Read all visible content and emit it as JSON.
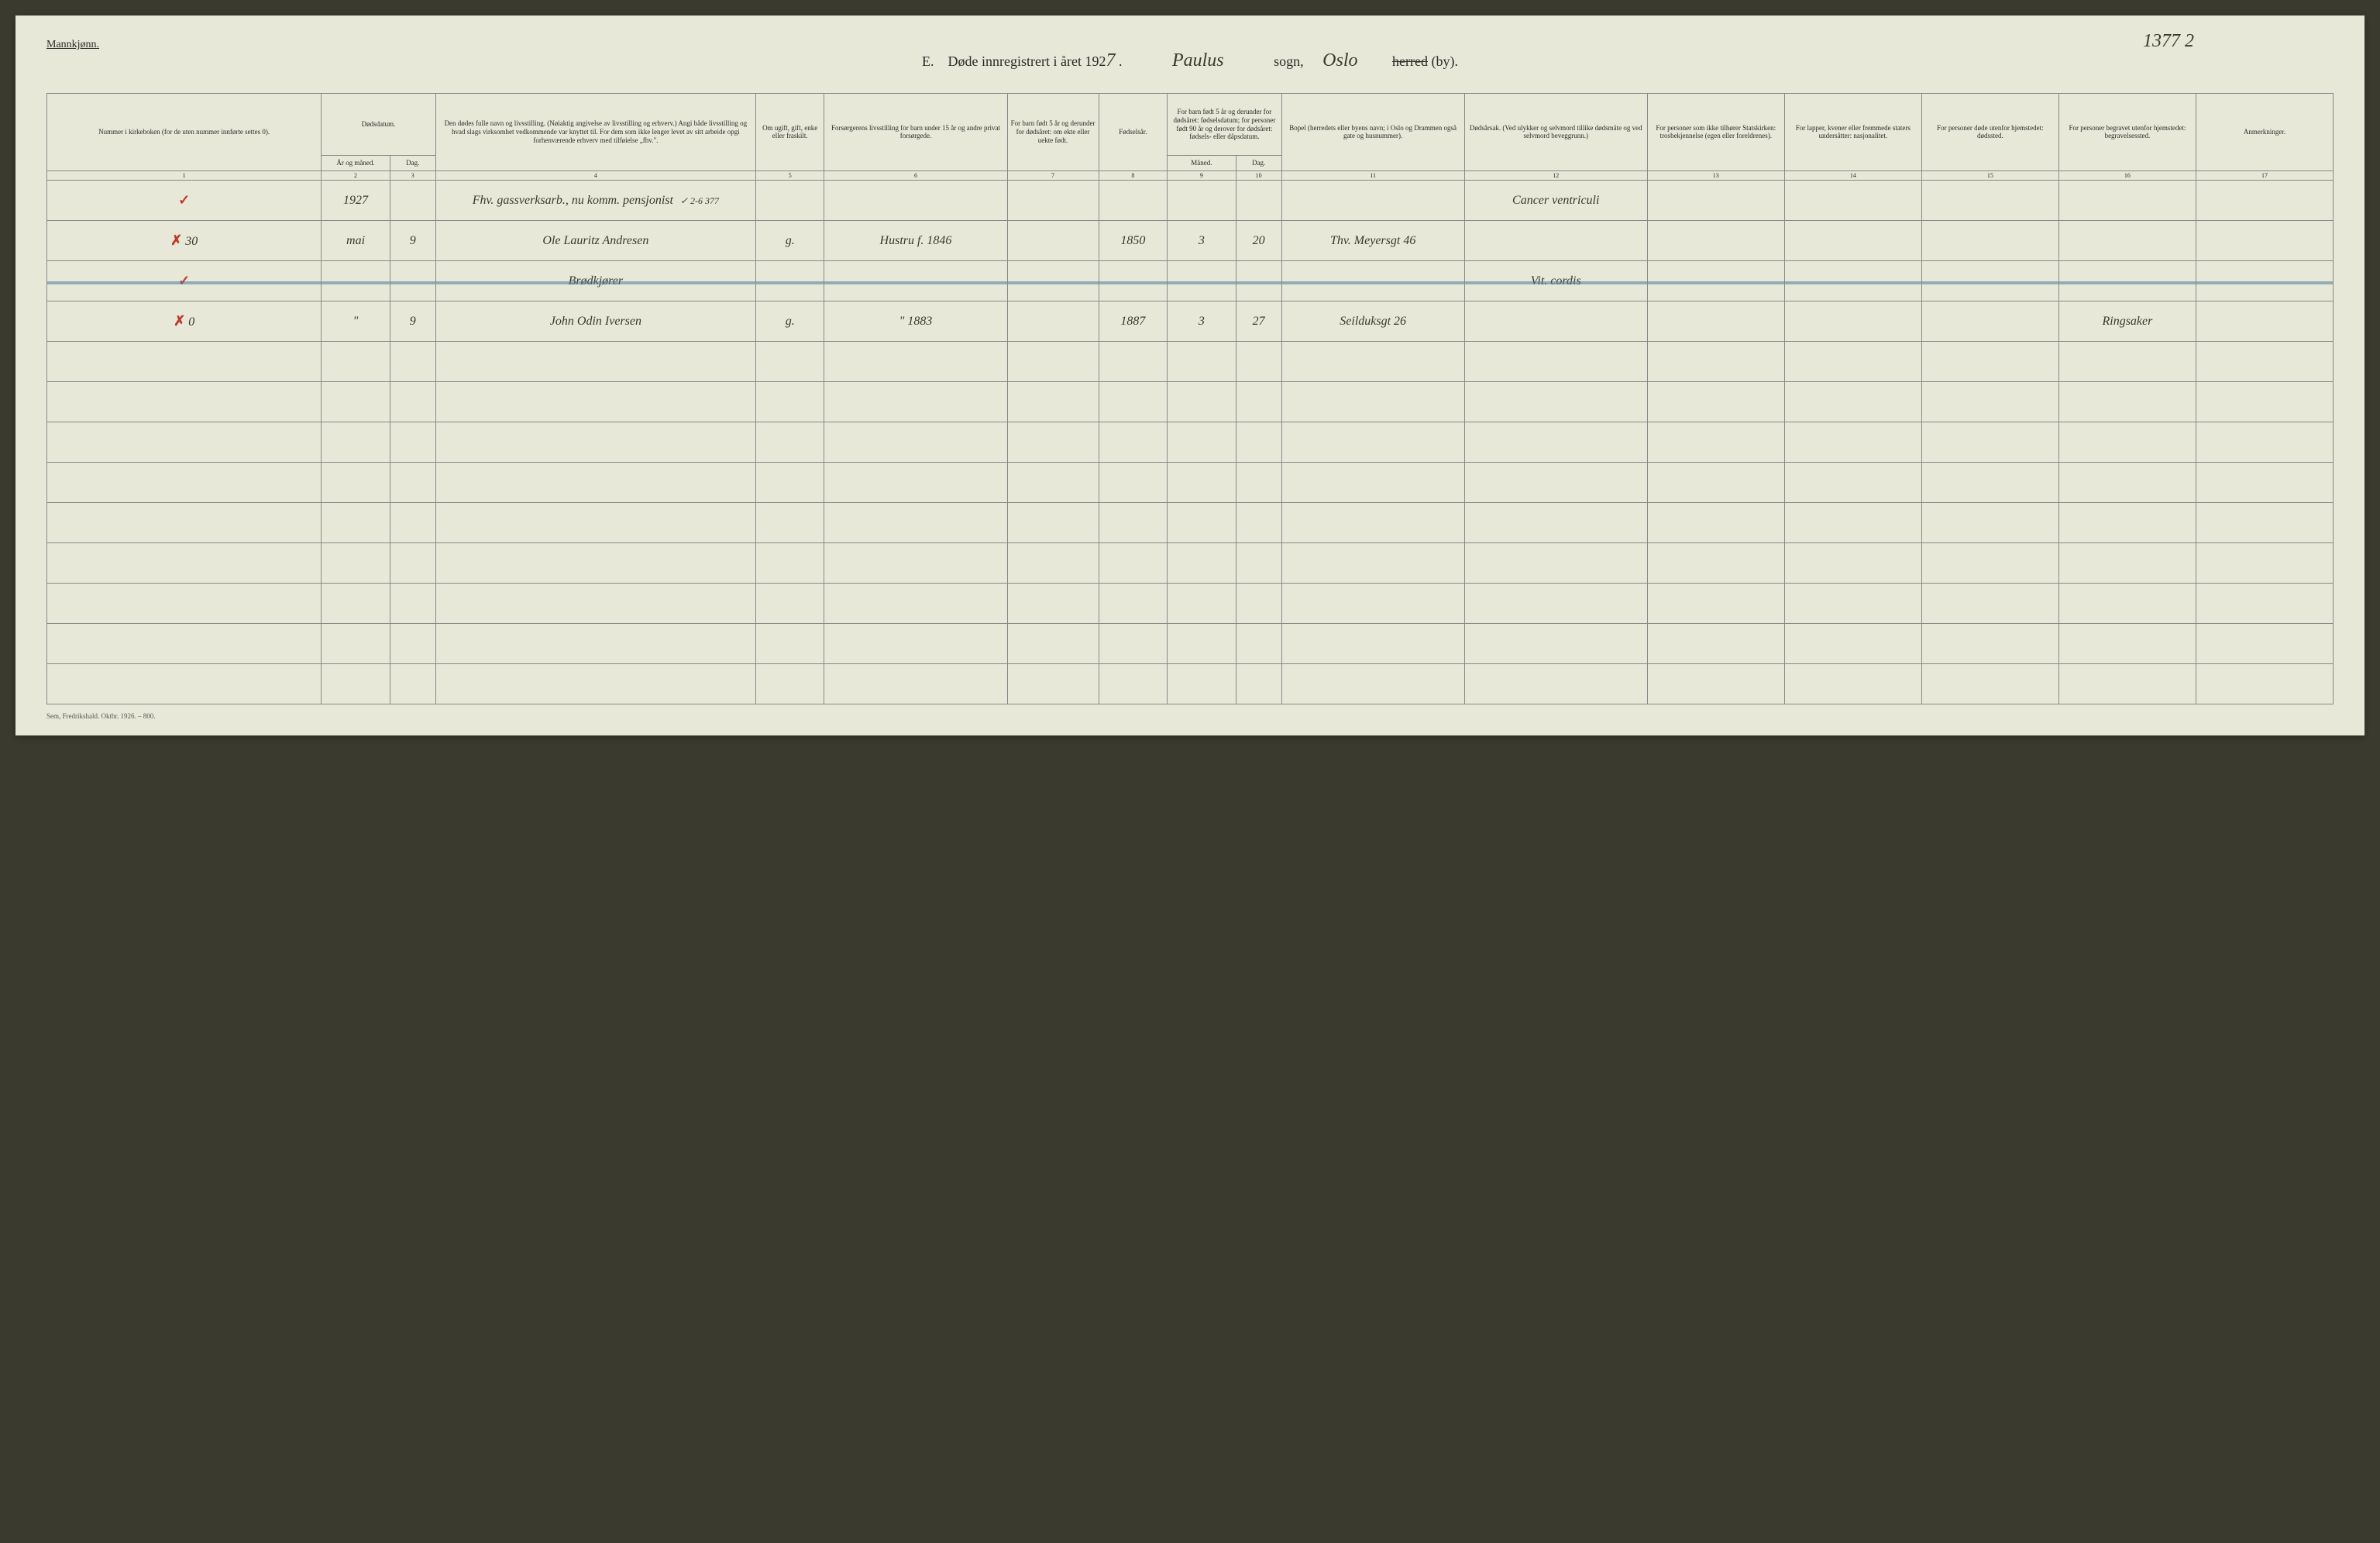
{
  "header": {
    "gender_label": "Mannkjønn.",
    "page_number_handwritten": "1377 2",
    "title_prefix": "E.",
    "title_main": "Døde innregistrert i året 192",
    "year_suffix": "7",
    "parish_handwritten": "Paulus",
    "sogn_label": "sogn,",
    "city_handwritten": "Oslo",
    "herred_struck": "herred",
    "by_label": "(by)."
  },
  "columns": {
    "c1": "Nummer i kirkeboken (for de uten nummer innførte settes 0).",
    "c2": "Dødsdatum.",
    "c2a": "År og måned.",
    "c2b": "Dag.",
    "c3": "Den dødes fulle navn og livsstilling. (Nøiaktig angivelse av livsstilling og erhverv.) Angi både livsstilling og hvad slags virksomhet vedkommende var knyttet til. For dem som ikke lenger levet av sitt arbeide opgi forhenværende erhverv med tilføielse „fhv.\".",
    "c4": "Om ugift, gift, enke eller fraskilt.",
    "c5": "Forsørgerens livsstilling for barn under 15 år og andre privat forsørgede.",
    "c6": "For barn født 5 år og derunder for dødsåret: om ekte eller uekte født.",
    "c7": "Fødselsår.",
    "c8": "For barn født 5 år og derunder for dødsåret: fødselsdatum; for personer født 90 år og derover for dødsåret: fødsels- eller dåpsdatum.",
    "c8a": "Måned.",
    "c8b": "Dag.",
    "c9": "Bopel (herredets eller byens navn; i Oslo og Drammen også gate og husnummer).",
    "c10": "Dødsårsak. (Ved ulykker og selvmord tillike dødsmåte og ved selvmord beveggrunn.)",
    "c11": "For personer som ikke tilhører Statskirken: trosbekjennelse (egen eller foreldrenes).",
    "c12": "For lapper, kvener eller fremmede staters undersåtter: nasjonalitet.",
    "c13": "For personer døde utenfor hjemstedet: dødssted.",
    "c14": "For personer begravet utenfor hjemstedet: begravelsessted.",
    "c15": "Anmerkninger."
  },
  "column_numbers": [
    "1",
    "2",
    "3",
    "4",
    "5",
    "6",
    "7",
    "8",
    "9",
    "10",
    "11",
    "12",
    "13",
    "14",
    "15",
    "16",
    "17"
  ],
  "rows": [
    {
      "mark": "✓",
      "num": "",
      "year": "1927",
      "day": "",
      "name": "Fhv. gassverksarb., nu komm. pensjonist",
      "note_after_name": "✓ 2-6 377",
      "marital": "",
      "provider": "",
      "child_legit": "",
      "birth_year": "",
      "birth_month": "",
      "birth_day": "",
      "residence": "",
      "cause": "Cancer ventriculi",
      "religion": "",
      "nationality": "",
      "death_place": "",
      "burial_place": "",
      "remarks": ""
    },
    {
      "mark": "✗",
      "num": "30",
      "year": "mai",
      "day": "9",
      "name": "Ole Lauritz Andresen",
      "marital": "g.",
      "provider": "Hustru f. 1846",
      "child_legit": "",
      "birth_year": "1850",
      "birth_month": "3",
      "birth_day": "20",
      "residence": "Thv. Meyersgt 46",
      "cause": "",
      "religion": "",
      "nationality": "",
      "death_place": "",
      "burial_place": "",
      "remarks": ""
    },
    {
      "mark": "✓",
      "num": "",
      "year": "",
      "day": "",
      "name": "Brødkjører",
      "marital": "",
      "provider": "",
      "child_legit": "",
      "birth_year": "",
      "birth_month": "",
      "birth_day": "",
      "residence": "",
      "cause": "Vit. cordis",
      "religion": "",
      "nationality": "",
      "death_place": "",
      "burial_place": "",
      "remarks": "",
      "blue_strike": true
    },
    {
      "mark": "✗",
      "num": "0",
      "year": "\"",
      "day": "9",
      "name": "John Odin Iversen",
      "marital": "g.",
      "provider": "\" 1883",
      "child_legit": "",
      "birth_year": "1887",
      "birth_month": "3",
      "birth_day": "27",
      "residence": "Seilduksgt 26",
      "cause": "",
      "religion": "",
      "nationality": "",
      "death_place": "",
      "burial_place": "Ringsaker",
      "remarks": ""
    }
  ],
  "empty_row_count": 9,
  "footer": "Sem, Fredrikshald. Oktbr. 1926. – 800.",
  "styling": {
    "page_bg": "#e8e8d8",
    "body_bg": "#3a3a2e",
    "text_color": "#2a2a2a",
    "handwriting_color": "#3a3a2a",
    "red_mark_color": "#c0392b",
    "blue_strike_color": "#4a7a9a",
    "border_color": "#888",
    "header_font_size": 18,
    "table_font_size": 9,
    "handwriting_font_size": 16
  }
}
